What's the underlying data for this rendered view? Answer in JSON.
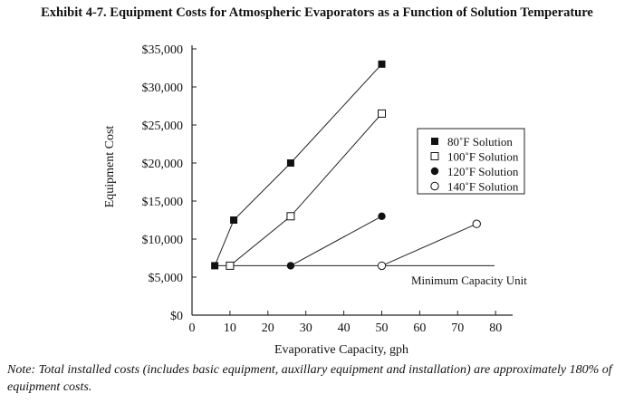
{
  "chart_data": {
    "type": "line",
    "title": "Exhibit 4-7. Equipment Costs for Atmospheric Evaporators as a Function of Solution Temperature",
    "xlabel": "Evaporative Capacity, gph",
    "ylabel": "Equipment Cost",
    "xlim": [
      0,
      85
    ],
    "ylim": [
      0,
      35000
    ],
    "xticks": [
      0,
      10,
      20,
      30,
      40,
      50,
      60,
      70,
      80
    ],
    "yticks": [
      0,
      5000,
      10000,
      15000,
      20000,
      25000,
      30000,
      35000
    ],
    "ytick_labels": [
      "$0",
      "$5,000",
      "$10,000",
      "$15,000",
      "$20,000",
      "$25,000",
      "$30,000",
      "$35,000"
    ],
    "legend_position": "right",
    "series": [
      {
        "name": "80˚F Solution",
        "marker": "filled-square",
        "x": [
          6,
          11,
          26,
          50
        ],
        "y": [
          6500,
          12500,
          20000,
          33000
        ]
      },
      {
        "name": "100˚F Solution",
        "marker": "open-square",
        "x": [
          10,
          26,
          50
        ],
        "y": [
          6500,
          13000,
          26500
        ]
      },
      {
        "name": "120˚F Solution",
        "marker": "filled-circle",
        "x": [
          26,
          50
        ],
        "y": [
          6500,
          13000
        ]
      },
      {
        "name": "140˚F Solution",
        "marker": "open-circle",
        "x": [
          50,
          75
        ],
        "y": [
          6500,
          12000
        ]
      }
    ],
    "reference_line": {
      "label": "Minimum Capacity Unit",
      "y": 6500,
      "x_start": 6,
      "x_end": 80
    }
  },
  "note": "Note: Total installed costs (includes basic equipment, auxillary equipment and installation) are approximately 180% of equipment costs."
}
